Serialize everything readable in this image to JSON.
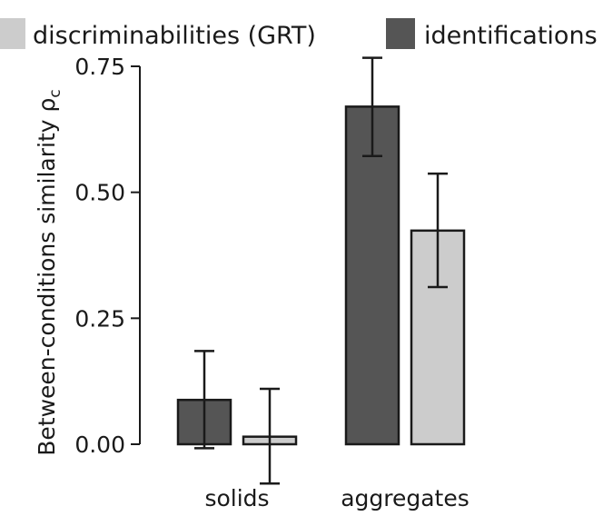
{
  "chart_data": {
    "type": "bar",
    "title": "",
    "xlabel": "",
    "ylabel": "Between-conditions similarity ρ",
    "ylabel_subscript": "c",
    "ylim": [
      0,
      0.75
    ],
    "yticks": [
      0.0,
      0.25,
      0.5,
      0.75
    ],
    "ytick_labels": [
      "0.00",
      "0.25",
      "0.50",
      "0.75"
    ],
    "categories": [
      "solids",
      "aggregates"
    ],
    "series": [
      {
        "name": "identifications",
        "color": "#555555",
        "values": [
          0.088,
          0.67
        ],
        "error_low": [
          -0.008,
          0.572
        ],
        "error_high": [
          0.185,
          0.767
        ]
      },
      {
        "name": "discriminabilities (GRT)",
        "color": "#cccccc",
        "values": [
          0.015,
          0.424
        ],
        "error_low": [
          -0.078,
          0.312
        ],
        "error_high": [
          0.11,
          0.537
        ]
      }
    ],
    "legend": {
      "placement": "top",
      "order": [
        1,
        0
      ]
    },
    "grid": false
  }
}
